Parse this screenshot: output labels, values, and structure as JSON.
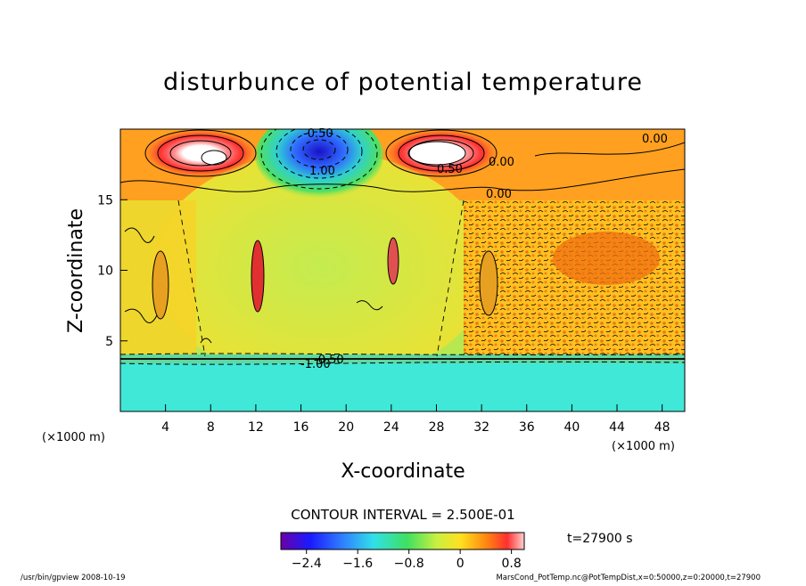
{
  "chart_data": {
    "type": "heatmap",
    "title": "disturbunce of potential temperature",
    "xlabel": "X-coordinate",
    "ylabel": "Z-coordinate",
    "x_unit": "(×1000 m)",
    "z_unit": "(×1000 m)",
    "xlim": [
      0,
      50
    ],
    "ylim": [
      0,
      20
    ],
    "x_ticks": [
      4,
      8,
      12,
      16,
      20,
      24,
      28,
      32,
      36,
      40,
      44,
      48
    ],
    "y_ticks": [
      5,
      10,
      15
    ],
    "contour_interval": "CONTOUR INTERVAL = 2.500E-01",
    "time": "t=27900 s",
    "colorbar": {
      "range": [
        -2.8,
        1.0
      ],
      "ticks": [
        "−2.4",
        "−1.6",
        "−0.8",
        "0",
        "0.8"
      ],
      "tick_values": [
        -2.4,
        -1.6,
        -0.8,
        0,
        0.8
      ]
    },
    "contour_labels": [
      "-0.50",
      "1.00",
      "0.50",
      "0.00",
      "0.00",
      "0.00",
      "-1.00",
      "-0.50"
    ],
    "footer_left": "/usr/bin/gpview   2008-10-19",
    "footer_right": "MarsCond_PotTemp.nc@PotTempDist,x=0:50000,z=0:20000,t=27900"
  }
}
